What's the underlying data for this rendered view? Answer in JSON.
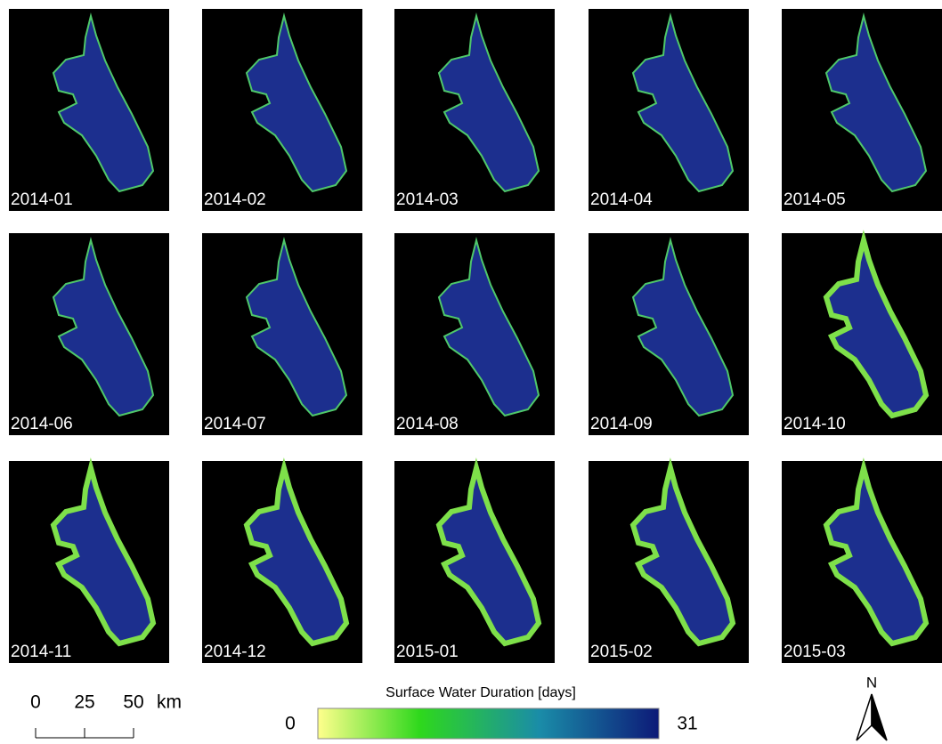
{
  "panels": [
    "2014-01",
    "2014-02",
    "2014-03",
    "2014-04",
    "2014-05",
    "2014-06",
    "2014-07",
    "2014-08",
    "2014-09",
    "2014-10",
    "2014-11",
    "2014-12",
    "2015-01",
    "2015-02",
    "2015-03"
  ],
  "scale_bar": {
    "ticks": [
      0,
      25,
      50
    ],
    "unit": "km"
  },
  "colorbar": {
    "title": "Surface Water Duration [days]",
    "min": 0,
    "max": 31
  },
  "north": "N"
}
